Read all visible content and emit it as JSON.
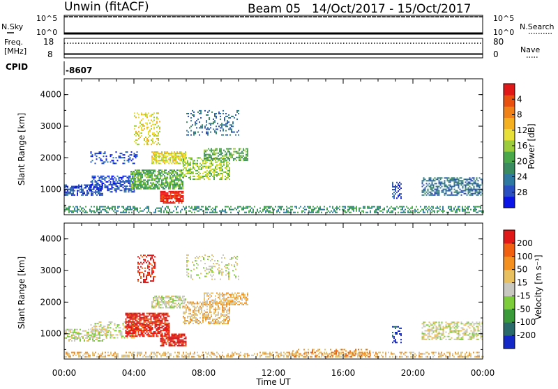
{
  "header": {
    "title": "Unwin (fitACF)",
    "beam": "Beam 05",
    "date_range": "14/Oct/2017 - 15/Oct/2017"
  },
  "top_panels": {
    "nsky_label": "N.Sky",
    "nsearch_label": "N.Search",
    "nsky_ticks": [
      "10^5",
      "10^0"
    ],
    "nsearch_ticks": [
      "10^5",
      "10^0"
    ],
    "freq_label_1": "Freq.",
    "freq_label_2": "[MHz]",
    "freq_ticks": [
      "18",
      "8"
    ],
    "nave_label": "Nave",
    "nave_ticks": [
      "80",
      "0"
    ],
    "cpid_label": "CPID",
    "cpid_value": "-8607"
  },
  "chart_data": [
    {
      "type": "heatmap",
      "name": "power",
      "ylabel": "Slant Range [km]",
      "yticks": [
        1000,
        2000,
        3000,
        4000
      ],
      "ylim": [
        200,
        4500
      ],
      "xlim": [
        0,
        24
      ],
      "colorbar": {
        "label": "Power [dB]",
        "ticks": [
          "4",
          "8",
          "12",
          "16",
          "20",
          "24",
          "28"
        ],
        "colors": [
          "#0a14e6",
          "#2a4fc0",
          "#2f78a0",
          "#3a8c60",
          "#4aa84a",
          "#9ccc3c",
          "#e8e03a",
          "#f4b020",
          "#f08018",
          "#e85010",
          "#e01818"
        ]
      },
      "regions": [
        {
          "t0": 0.0,
          "t1": 24.0,
          "r0": 250,
          "r1": 450,
          "level": 3,
          "density": 0.45
        },
        {
          "t0": 0.0,
          "t1": 2.2,
          "r0": 800,
          "r1": 1150,
          "level": 1,
          "density": 0.6
        },
        {
          "t0": 1.5,
          "t1": 4.0,
          "r0": 900,
          "r1": 1400,
          "level": 1,
          "density": 0.55
        },
        {
          "t0": 1.5,
          "t1": 4.2,
          "r0": 1800,
          "r1": 2200,
          "level": 1,
          "density": 0.3
        },
        {
          "t0": 3.8,
          "t1": 6.8,
          "r0": 1000,
          "r1": 1600,
          "level": 4,
          "density": 0.7
        },
        {
          "t0": 5.5,
          "t1": 6.8,
          "r0": 550,
          "r1": 950,
          "level": 10,
          "density": 0.85
        },
        {
          "t0": 4.0,
          "t1": 5.5,
          "r0": 2400,
          "r1": 3400,
          "level": 6,
          "density": 0.35
        },
        {
          "t0": 5.0,
          "t1": 7.0,
          "r0": 1800,
          "r1": 2200,
          "level": 6,
          "density": 0.7
        },
        {
          "t0": 6.8,
          "t1": 9.5,
          "r0": 1300,
          "r1": 2000,
          "level": 5,
          "density": 0.55
        },
        {
          "t0": 8.0,
          "t1": 10.5,
          "r0": 1900,
          "r1": 2300,
          "level": 4,
          "density": 0.6
        },
        {
          "t0": 7.0,
          "t1": 10.0,
          "r0": 2700,
          "r1": 3500,
          "level": 2,
          "density": 0.25
        },
        {
          "t0": 18.8,
          "t1": 19.3,
          "r0": 700,
          "r1": 1200,
          "level": 1,
          "density": 0.4
        },
        {
          "t0": 20.5,
          "t1": 24.0,
          "r0": 800,
          "r1": 1350,
          "level": 2,
          "density": 0.55
        }
      ]
    },
    {
      "type": "heatmap",
      "name": "velocity",
      "xlabel": "Time UT",
      "xticks": [
        "00:00",
        "04:00",
        "08:00",
        "12:00",
        "16:00",
        "20:00",
        "00:00"
      ],
      "ylabel": "Slant Range [km]",
      "yticks": [
        1000,
        2000,
        3000,
        4000
      ],
      "ylim": [
        200,
        4500
      ],
      "xlim": [
        0,
        24
      ],
      "colorbar": {
        "label": "Velocity [m s⁻¹]",
        "ticks": [
          "200",
          "100",
          "50",
          "15",
          "-15",
          "-50",
          "-100",
          "-200"
        ],
        "colors": [
          "#1428c8",
          "#2a6a6a",
          "#3a9a3a",
          "#7ccc3c",
          "#c8c8c0",
          "#e8c060",
          "#f49020",
          "#f06010",
          "#e01818"
        ]
      },
      "regions": [
        {
          "t0": 0.0,
          "t1": 24.0,
          "r0": 250,
          "r1": 420,
          "level": 5,
          "density": 0.45
        },
        {
          "t0": 0.0,
          "t1": 2.5,
          "r0": 750,
          "r1": 1150,
          "level": 4,
          "density": 0.5
        },
        {
          "t0": 1.5,
          "t1": 4.0,
          "r0": 850,
          "r1": 1350,
          "level": 4,
          "density": 0.4
        },
        {
          "t0": 3.5,
          "t1": 6.0,
          "r0": 900,
          "r1": 1650,
          "level": 8,
          "density": 0.8
        },
        {
          "t0": 5.5,
          "t1": 7.0,
          "r0": 600,
          "r1": 1000,
          "level": 8,
          "density": 0.8
        },
        {
          "t0": 4.2,
          "t1": 5.2,
          "r0": 2600,
          "r1": 3500,
          "level": 8,
          "density": 0.4
        },
        {
          "t0": 5.0,
          "t1": 7.0,
          "r0": 1800,
          "r1": 2200,
          "level": 4,
          "density": 0.6
        },
        {
          "t0": 6.8,
          "t1": 9.5,
          "r0": 1300,
          "r1": 2000,
          "level": 5,
          "density": 0.55
        },
        {
          "t0": 8.0,
          "t1": 10.5,
          "r0": 1900,
          "r1": 2300,
          "level": 5,
          "density": 0.6
        },
        {
          "t0": 7.0,
          "t1": 10.0,
          "r0": 2700,
          "r1": 3500,
          "level": 4,
          "density": 0.2
        },
        {
          "t0": 13.0,
          "t1": 17.5,
          "r0": 250,
          "r1": 500,
          "level": 6,
          "density": 0.35
        },
        {
          "t0": 18.8,
          "t1": 19.3,
          "r0": 700,
          "r1": 1200,
          "level": 0,
          "density": 0.4
        },
        {
          "t0": 20.5,
          "t1": 24.0,
          "r0": 800,
          "r1": 1350,
          "level": 4,
          "density": 0.5
        }
      ]
    }
  ]
}
